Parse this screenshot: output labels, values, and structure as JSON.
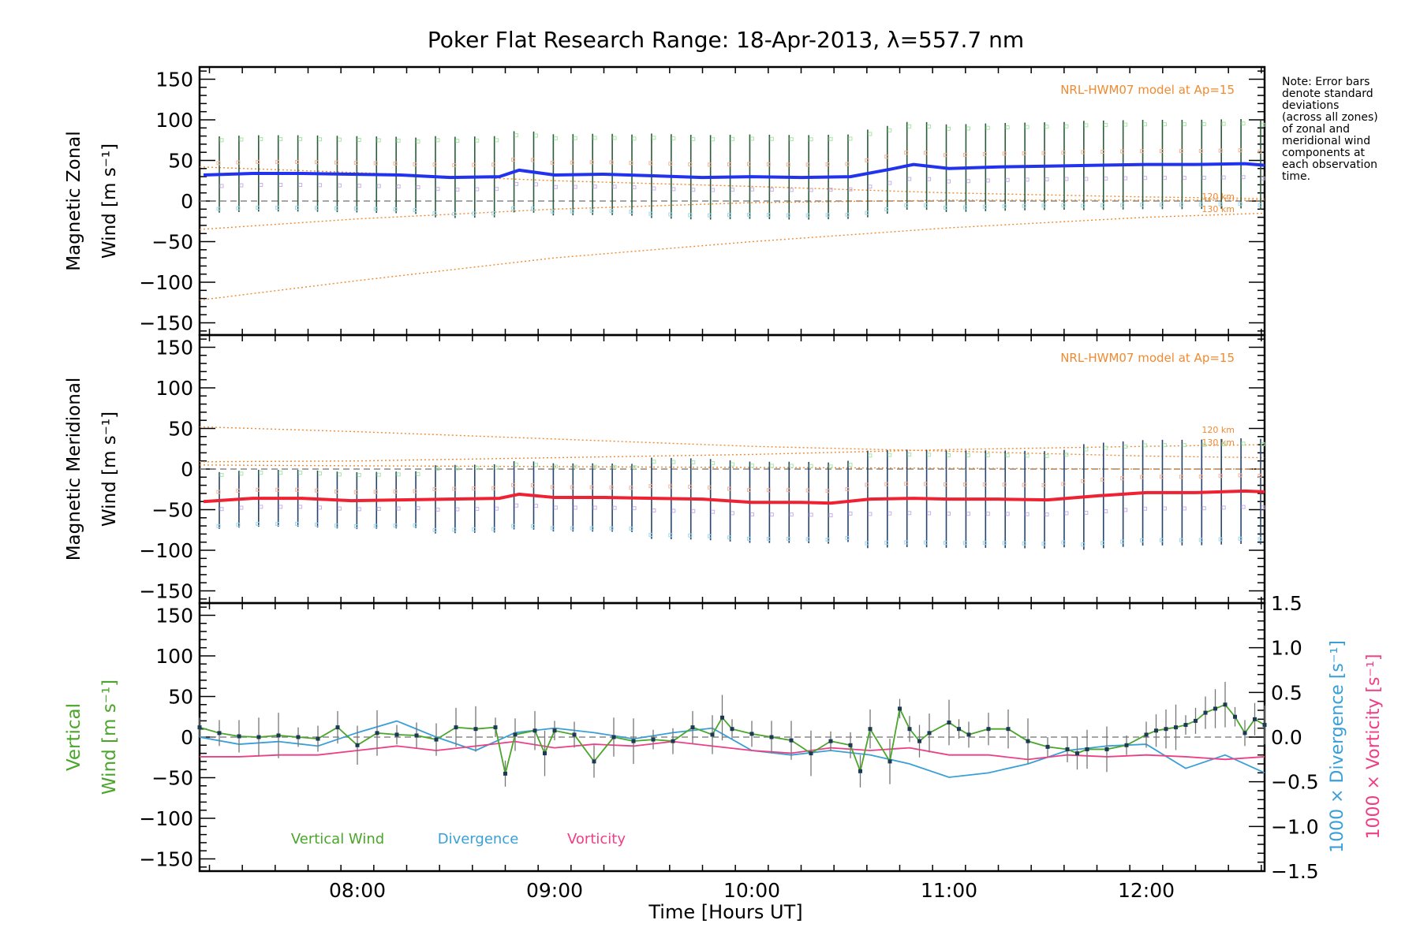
{
  "title": "Poker Flat Research Range: 18-Apr-2013, λ=557.7 nm",
  "note": [
    "Note: Error bars",
    "denote standard",
    "deviations",
    "(across all zones)",
    "of zonal and",
    "meridional wind",
    "components at",
    "each observation",
    "time."
  ],
  "xaxis": {
    "label": "Time [Hours UT]",
    "range": [
      7.2,
      12.6
    ],
    "ticks": [
      8,
      9,
      10,
      11,
      12
    ],
    "tick_labels": [
      "08:00",
      "09:00",
      "10:00",
      "11:00",
      "12:00"
    ]
  },
  "colors": {
    "zonal": "#2233ee",
    "meridional": "#ee2233",
    "model": "#f08a30",
    "vertical": "#4aa52a",
    "divergence": "#3a9fd6",
    "vorticity": "#ee3e86",
    "errbar_zonal": "#2c5a3a",
    "errbar_merid": "#27456a"
  },
  "chart_data": [
    {
      "type": "line",
      "name": "zonal",
      "ylabel": [
        "Magnetic Zonal",
        "Wind [m s⁻¹]"
      ],
      "ylim": [
        -165,
        165
      ],
      "yticks": [
        150,
        100,
        50,
        0,
        -50,
        -100,
        -150
      ],
      "ytick_labels": [
        "150",
        "100",
        "50",
        "0",
        "−50",
        "−100",
        "−150"
      ],
      "model_label": "NRL-HWM07 model at Ap=15",
      "model_lines": [
        {
          "name": "120 km",
          "x": [
            7.2,
            8.0,
            9.0,
            10.0,
            11.0,
            12.0,
            12.6
          ],
          "y": [
            -35,
            -22,
            -10,
            -2,
            1,
            1,
            1
          ]
        },
        {
          "name": "130 km",
          "x": [
            7.2,
            8.0,
            9.0,
            10.0,
            11.0,
            12.0,
            12.6
          ],
          "y": [
            -122,
            -98,
            -70,
            -50,
            -33,
            -20,
            -15
          ]
        },
        {
          "name": "",
          "x": [
            7.2,
            8.0,
            9.0,
            10.0,
            11.0,
            12.0,
            12.6
          ],
          "y": [
            42,
            35,
            25,
            18,
            10,
            5,
            3
          ]
        }
      ],
      "model_line_labels": [
        "120 km",
        "130 km"
      ],
      "series": {
        "x": [
          7.22,
          7.47,
          7.72,
          7.97,
          8.22,
          8.47,
          8.72,
          8.82,
          9.0,
          9.25,
          9.5,
          9.75,
          10.0,
          10.25,
          10.5,
          10.7,
          10.82,
          11.0,
          11.25,
          11.5,
          11.75,
          12.0,
          12.25,
          12.5,
          12.6
        ],
        "y": [
          32,
          34,
          34,
          33,
          32,
          29,
          30,
          38,
          32,
          33,
          31,
          29,
          30,
          29,
          30,
          39,
          45,
          40,
          42,
          43,
          44,
          45,
          45,
          46,
          44
        ]
      },
      "errorbars": {
        "x_start": 7.3,
        "x_end": 12.58,
        "count": 54,
        "half_width": [
          47,
          50,
          52,
          54,
          55
        ]
      }
    },
    {
      "type": "line",
      "name": "meridional",
      "ylabel": [
        "Magnetic Meridional",
        "Wind [m s⁻¹]"
      ],
      "ylim": [
        -165,
        165
      ],
      "yticks": [
        150,
        100,
        50,
        0,
        -50,
        -100,
        -150
      ],
      "ytick_labels": [
        "150",
        "100",
        "50",
        "0",
        "−50",
        "−100",
        "−150"
      ],
      "model_label": "NRL-HWM07 model at Ap=15",
      "model_lines": [
        {
          "name": "120 km",
          "x": [
            7.2,
            8.0,
            9.0,
            10.0,
            11.0,
            12.0,
            12.6
          ],
          "y": [
            52,
            46,
            37,
            28,
            22,
            16,
            14
          ]
        },
        {
          "name": "130 km",
          "x": [
            7.2,
            8.0,
            9.0,
            10.0,
            11.0,
            12.0,
            12.6
          ],
          "y": [
            9,
            10,
            14,
            18,
            24,
            28,
            30
          ]
        },
        {
          "name": "",
          "x": [
            7.2,
            8.0,
            9.0,
            10.0,
            11.0,
            12.0,
            12.6
          ],
          "y": [
            5,
            4,
            3,
            2,
            1,
            0,
            0
          ]
        }
      ],
      "model_line_labels": [
        "120 km",
        "130 km"
      ],
      "series": {
        "x": [
          7.22,
          7.47,
          7.72,
          7.97,
          8.22,
          8.47,
          8.72,
          8.82,
          9.0,
          9.25,
          9.5,
          9.75,
          10.0,
          10.25,
          10.4,
          10.6,
          10.82,
          11.0,
          11.25,
          11.5,
          11.75,
          12.0,
          12.25,
          12.5,
          12.6
        ],
        "y": [
          -40,
          -36,
          -36,
          -39,
          -38,
          -37,
          -36,
          -31,
          -35,
          -35,
          -36,
          -37,
          -41,
          -41,
          -42,
          -37,
          -36,
          -37,
          -37,
          -38,
          -33,
          -29,
          -29,
          -27,
          -28
        ]
      },
      "errorbars": {
        "x_start": 7.3,
        "x_end": 12.58,
        "count": 54,
        "half_width": [
          35,
          42,
          50,
          60,
          65
        ]
      }
    },
    {
      "type": "line",
      "name": "vertical",
      "ylabel_left": [
        "Vertical",
        "Wind [m s⁻¹]"
      ],
      "ylabel_right": [
        "1000 × Divergence [s⁻¹]",
        "1000 × Vorticity [s⁻¹]"
      ],
      "ylim": [
        -165,
        165
      ],
      "yticks": [
        150,
        100,
        50,
        0,
        -50,
        -100,
        -150
      ],
      "ytick_labels": [
        "150",
        "100",
        "50",
        "0",
        "−50",
        "−100",
        "−150"
      ],
      "ylim_right": [
        -1.5,
        1.5
      ],
      "yticks_right": [
        1.5,
        1.0,
        0.5,
        0.0,
        -0.5,
        -1.0,
        -1.5
      ],
      "ytick_labels_right": [
        "1.5",
        "1.0",
        "0.5",
        "0.0",
        "−0.5",
        "−1.0",
        "−1.5"
      ],
      "legend": [
        "Vertical Wind",
        "Divergence",
        "Vorticity"
      ],
      "vertical_wind": {
        "x": [
          7.2,
          7.3,
          7.4,
          7.5,
          7.6,
          7.7,
          7.8,
          7.9,
          8.0,
          8.1,
          8.2,
          8.3,
          8.4,
          8.5,
          8.6,
          8.7,
          8.75,
          8.8,
          8.9,
          8.95,
          9.0,
          9.1,
          9.2,
          9.3,
          9.4,
          9.5,
          9.6,
          9.7,
          9.8,
          9.85,
          9.9,
          10.0,
          10.1,
          10.2,
          10.3,
          10.4,
          10.5,
          10.55,
          10.6,
          10.7,
          10.75,
          10.8,
          10.85,
          10.9,
          11.0,
          11.05,
          11.1,
          11.2,
          11.3,
          11.4,
          11.5,
          11.6,
          11.65,
          11.7,
          11.8,
          11.9,
          12.0,
          12.05,
          12.1,
          12.15,
          12.2,
          12.25,
          12.3,
          12.35,
          12.4,
          12.45,
          12.5,
          12.55,
          12.6
        ],
        "y": [
          12,
          5,
          1,
          0,
          2,
          0,
          -2,
          12,
          -10,
          5,
          3,
          2,
          -3,
          12,
          10,
          12,
          -45,
          3,
          8,
          -20,
          8,
          3,
          -30,
          0,
          -5,
          -3,
          -5,
          12,
          3,
          24,
          10,
          4,
          0,
          -4,
          -20,
          -5,
          -10,
          -42,
          10,
          -30,
          35,
          10,
          -5,
          5,
          18,
          10,
          3,
          10,
          10,
          -5,
          -12,
          -15,
          -20,
          -15,
          -15,
          -10,
          3,
          8,
          10,
          12,
          15,
          20,
          30,
          35,
          40,
          25,
          5,
          22,
          15
        ]
      },
      "divergence": {
        "x": [
          7.2,
          7.4,
          7.6,
          7.8,
          8.0,
          8.2,
          8.4,
          8.6,
          8.8,
          9.0,
          9.2,
          9.4,
          9.6,
          9.8,
          10.0,
          10.2,
          10.4,
          10.6,
          10.8,
          11.0,
          11.2,
          11.4,
          11.6,
          11.8,
          12.0,
          12.2,
          12.4,
          12.6
        ],
        "y": [
          0.0,
          -0.08,
          -0.05,
          -0.1,
          0.05,
          0.18,
          0.0,
          -0.15,
          0.05,
          0.1,
          0.05,
          -0.02,
          0.05,
          0.1,
          -0.15,
          -0.2,
          -0.15,
          -0.2,
          -0.3,
          -0.45,
          -0.4,
          -0.3,
          -0.15,
          -0.1,
          -0.08,
          -0.35,
          -0.2,
          -0.4
        ]
      },
      "vorticity": {
        "x": [
          7.2,
          7.4,
          7.6,
          7.8,
          8.0,
          8.2,
          8.4,
          8.6,
          8.8,
          9.0,
          9.2,
          9.4,
          9.6,
          9.8,
          10.0,
          10.2,
          10.4,
          10.6,
          10.8,
          11.0,
          11.2,
          11.4,
          11.6,
          11.8,
          12.0,
          12.2,
          12.4,
          12.6
        ],
        "y": [
          -0.22,
          -0.22,
          -0.2,
          -0.2,
          -0.15,
          -0.1,
          -0.15,
          -0.1,
          -0.05,
          -0.12,
          -0.08,
          -0.1,
          -0.05,
          -0.1,
          -0.15,
          -0.18,
          -0.12,
          -0.15,
          -0.12,
          -0.2,
          -0.2,
          -0.25,
          -0.2,
          -0.22,
          -0.2,
          -0.22,
          -0.25,
          -0.22
        ]
      }
    }
  ]
}
